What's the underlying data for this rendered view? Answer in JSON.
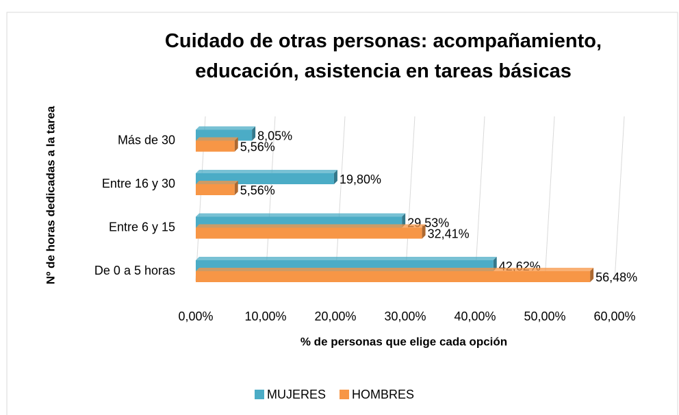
{
  "chart_data": {
    "type": "bar",
    "orientation": "horizontal",
    "title": "Cuidado de otras personas: acompañamiento, educación, asistencia en tareas básicas",
    "xlabel": "% de personas que elige cada opción",
    "ylabel": "Nº de horas dedicadas a la tarea",
    "categories": [
      "De 0 a 5 horas",
      "Entre 6 y 15",
      "Entre 16 y 30",
      "Más de 30"
    ],
    "series": [
      {
        "name": "MUJERES",
        "color": "#4bacc6",
        "values": [
          42.62,
          29.53,
          19.8,
          8.05
        ],
        "value_labels": [
          "42,62%",
          "29,53%",
          "19,80%",
          "8,05%"
        ]
      },
      {
        "name": "HOMBRES",
        "color": "#f79646",
        "values": [
          56.48,
          32.41,
          5.56,
          5.56
        ],
        "value_labels": [
          "56,48%",
          "32,41%",
          "5,56%",
          "5,56%"
        ]
      }
    ],
    "xlim": [
      0,
      60
    ],
    "xticks": [
      {
        "value": 0,
        "label": "0,00%"
      },
      {
        "value": 10,
        "label": "10,00%"
      },
      {
        "value": 20,
        "label": "20,00%"
      },
      {
        "value": 30,
        "label": "30,00%"
      },
      {
        "value": 40,
        "label": "40,00%"
      },
      {
        "value": 50,
        "label": "50,00%"
      },
      {
        "value": 60,
        "label": "60,00%"
      }
    ],
    "grid": true,
    "legend": "bottom"
  }
}
